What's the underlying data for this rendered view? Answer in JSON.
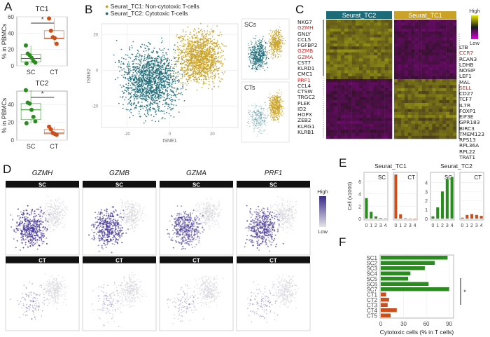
{
  "panels": {
    "A": {
      "label": "A"
    },
    "B": {
      "label": "B"
    },
    "C": {
      "label": "C"
    },
    "D": {
      "label": "D"
    },
    "E": {
      "label": "E"
    },
    "F": {
      "label": "F"
    }
  },
  "colors": {
    "sc_green": "#2a8c1f",
    "ct_orange": "#c9501c",
    "tc1_gold": "#c9a227",
    "tc2_teal": "#1b6b78",
    "heat_high": "#e8e800",
    "heat_mid": "#1a1a1a",
    "heat_low": "#e000e0",
    "expr_high": "#3a2a86",
    "expr_low": "#e4e4ea"
  },
  "chart_data": [
    {
      "id": "A-TC1",
      "type": "box",
      "title": "TC1",
      "ylabel": "% in PBMCs",
      "categories": [
        "SC",
        "CT"
      ],
      "ylim": [
        0,
        60
      ],
      "yticks": [
        0,
        20,
        40,
        60
      ],
      "points": {
        "SC": [
          25,
          15,
          13,
          10,
          6,
          4,
          3
        ],
        "CT": [
          58,
          43,
          35,
          34,
          27
        ]
      },
      "box": {
        "SC": {
          "q1": 5,
          "median": 9,
          "q3": 14,
          "min": 2,
          "max": 25
        },
        "CT": {
          "q1": 33,
          "median": 34,
          "q3": 43,
          "min": 27,
          "max": 58
        }
      },
      "significance": "*"
    },
    {
      "id": "A-TC2",
      "type": "box",
      "title": "TC2",
      "ylabel": "% in PBMCs",
      "categories": [
        "SC",
        "CT"
      ],
      "ylim": [
        0,
        55
      ],
      "yticks": [
        0,
        20,
        40
      ],
      "points": {
        "SC": [
          56,
          42,
          41,
          34,
          26,
          21,
          19
        ],
        "CT": [
          15,
          12,
          8,
          7,
          6
        ]
      },
      "box": {
        "SC": {
          "q1": 23,
          "median": 34,
          "q3": 41,
          "min": 19,
          "max": 56
        },
        "CT": {
          "q1": 7,
          "median": 8,
          "q3": 12,
          "min": 6,
          "max": 15
        }
      },
      "significance": "*"
    },
    {
      "id": "B-tsne",
      "type": "scatter",
      "xlabel": "tSNE1",
      "ylabel": "tSNE2",
      "xticks": [
        -20,
        0,
        20
      ],
      "yticks": [
        -20,
        0,
        20
      ],
      "legend": [
        "Seurat_TC1: Non-cytotoxic T-cells",
        "Seurat_TC2: Cytotoxic T-cells"
      ],
      "legend_position": "top",
      "insets": [
        "SCs",
        "CTs"
      ]
    },
    {
      "id": "C-heatmap",
      "type": "heatmap",
      "column_groups": [
        "Seurat_TC2",
        "Seurat_TC1"
      ],
      "legend_high": "High",
      "legend_low": "Low",
      "left_genes": [
        {
          "name": "NKG7",
          "red": false
        },
        {
          "name": "GZMH",
          "red": true
        },
        {
          "name": "GNLY",
          "red": false
        },
        {
          "name": "CCL5",
          "red": false
        },
        {
          "name": "FGFBP2",
          "red": false
        },
        {
          "name": "GZMB",
          "red": true
        },
        {
          "name": "GZMA",
          "red": true
        },
        {
          "name": "CST7",
          "red": false
        },
        {
          "name": "KLRD1",
          "red": false
        },
        {
          "name": "CMC1",
          "red": false
        },
        {
          "name": "PRF1",
          "red": true
        },
        {
          "name": "CCL4",
          "red": false
        },
        {
          "name": "CTSW",
          "red": false
        },
        {
          "name": "TRGC2",
          "red": false
        },
        {
          "name": "PLEK",
          "red": false
        },
        {
          "name": "ID2",
          "red": false
        },
        {
          "name": "HOPX",
          "red": false
        },
        {
          "name": "ZEB2",
          "red": false
        },
        {
          "name": "KLRG1",
          "red": false
        },
        {
          "name": "KLRB1",
          "red": false
        }
      ],
      "right_genes": [
        {
          "name": "LTB",
          "red": false
        },
        {
          "name": "CCR7",
          "red": true
        },
        {
          "name": "RCAN3",
          "red": false
        },
        {
          "name": "LDHB",
          "red": false
        },
        {
          "name": "NOSIP",
          "red": false
        },
        {
          "name": "LEF1",
          "red": false
        },
        {
          "name": "MAL",
          "red": false
        },
        {
          "name": "SELL",
          "red": true
        },
        {
          "name": "CD27",
          "red": false
        },
        {
          "name": "TCF7",
          "red": false
        },
        {
          "name": "IL7R",
          "red": false
        },
        {
          "name": "FOXP1",
          "red": false
        },
        {
          "name": "EIF3E",
          "red": false
        },
        {
          "name": "GPR183",
          "red": false
        },
        {
          "name": "BIRC3",
          "red": false
        },
        {
          "name": "TMEM123",
          "red": false
        },
        {
          "name": "RPS13",
          "red": false
        },
        {
          "name": "RPL36A",
          "red": false
        },
        {
          "name": "RPL22",
          "red": false
        },
        {
          "name": "TRAT1",
          "red": false
        }
      ]
    },
    {
      "id": "D-feature",
      "type": "scatter",
      "genes": [
        "GZMH",
        "GZMB",
        "GZMA",
        "PRF1"
      ],
      "rows": [
        "SC",
        "CT"
      ],
      "legend_high": "High",
      "legend_low": "Low",
      "sc_intensity": [
        0.85,
        0.75,
        0.6,
        0.7
      ],
      "ct_intensity": [
        0.35,
        0.25,
        0.25,
        0.3
      ]
    },
    {
      "id": "E-counts",
      "type": "bar",
      "ylabel": "Cell (x1000)",
      "categories": [
        "0",
        "1",
        "2",
        "3",
        "4"
      ],
      "groups": [
        {
          "title": "Seurat_TC1",
          "ylim": [
            0,
            7
          ],
          "yticks": [
            0,
            2,
            4,
            6
          ],
          "series": [
            {
              "name": "SC",
              "values": [
                3.3,
                1.1,
                0.35,
                0.1,
                0.05
              ]
            },
            {
              "name": "CT",
              "values": [
                7.1,
                0.7,
                0.08,
                0.02,
                0.0
              ]
            }
          ]
        },
        {
          "title": "Seurat_TC2",
          "ylim": [
            0,
            4.8
          ],
          "yticks": [
            0,
            1,
            2,
            3,
            4
          ],
          "series": [
            {
              "name": "SC",
              "values": [
                0.25,
                1.25,
                3.0,
                4.35,
                4.6
              ]
            },
            {
              "name": "CT",
              "values": [
                0.1,
                0.4,
                0.5,
                0.4,
                0.3
              ]
            }
          ]
        }
      ]
    },
    {
      "id": "F-cytotoxic",
      "type": "bar",
      "orientation": "horizontal",
      "xlabel": "Cytotoxic cells (% in T cells)",
      "xlim": [
        0,
        95
      ],
      "xticks": [
        0,
        30,
        60,
        90
      ],
      "categories": [
        "SC1",
        "SC2",
        "SC3",
        "SC4",
        "SC5",
        "SC6",
        "SC7",
        "CT1",
        "CT2",
        "CT3",
        "CT4",
        "CT5"
      ],
      "values": [
        88,
        71,
        58,
        39,
        36,
        63,
        90,
        7,
        11,
        9,
        21,
        13
      ],
      "significance": "*"
    }
  ]
}
